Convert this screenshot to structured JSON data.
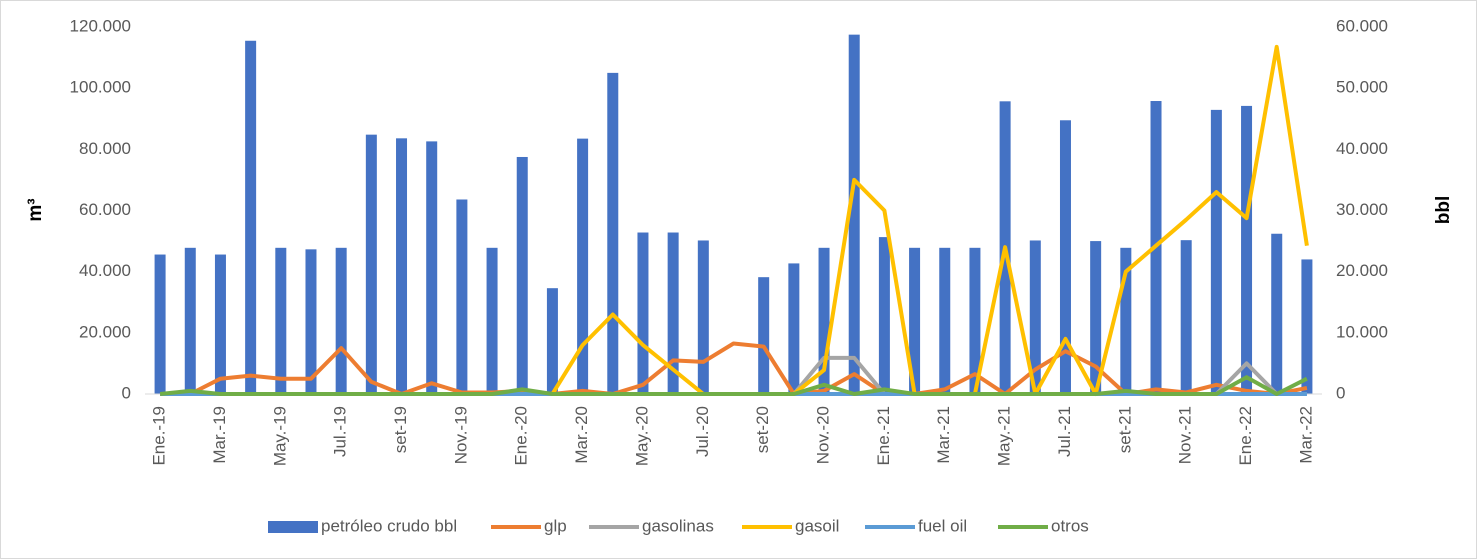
{
  "chart_data": {
    "type": "bar",
    "categories": [
      "Ene.-19",
      null,
      "Mar.-19",
      null,
      "May.-19",
      null,
      "Jul.-19",
      null,
      "set-19",
      null,
      "Nov.-19",
      null,
      "Ene.-20",
      null,
      "Mar.-20",
      null,
      "May.-20",
      null,
      "Jul.-20",
      null,
      "set-20",
      null,
      "Nov.-20",
      null,
      "Ene.-21",
      null,
      "Mar.-21",
      null,
      "May.-21",
      null,
      "Jul.-21",
      null,
      "set-21",
      null,
      "Nov.-21",
      null,
      "Ene.-22",
      null,
      "Mar.-22"
    ],
    "ylabel": "m³",
    "y2label": "bbl",
    "ylim": [
      0,
      120000
    ],
    "yticks": [
      0,
      {
        "value": 20000,
        "label": "20.000"
      },
      {
        "value": 40000,
        "label": "40.000"
      },
      {
        "value": 60000,
        "label": "60.000"
      },
      {
        "value": 80000,
        "label": "80.000"
      },
      {
        "value": 100000,
        "label": "100.000"
      },
      {
        "value": 120000,
        "label": "120.000"
      }
    ],
    "y2lim": [
      0,
      60000
    ],
    "y2ticks": [
      0,
      {
        "value": 10000,
        "label": "10.000"
      },
      {
        "value": 20000,
        "label": "20.000"
      },
      {
        "value": 30000,
        "label": "30.000"
      },
      {
        "value": 40000,
        "label": "40.000"
      },
      {
        "value": 50000,
        "label": "50.000"
      },
      {
        "value": 60000,
        "label": "60.000"
      }
    ],
    "grid": false,
    "legend": "bottom",
    "series": [
      {
        "name": "petróleo crudo bbl",
        "type": "bar",
        "axis": "y2",
        "color": "#4472c4",
        "values": [
          22800,
          23900,
          22800,
          57750,
          23900,
          23650,
          23900,
          42400,
          41800,
          41300,
          31800,
          23900,
          38750,
          17300,
          41750,
          52500,
          26400,
          26400,
          25100,
          0,
          19100,
          21350,
          23900,
          58750,
          25650,
          23900,
          23900,
          23900,
          47850,
          25100,
          44750,
          25000,
          23900,
          47900,
          25150,
          46450,
          47100,
          26200,
          22000
        ]
      },
      {
        "name": "glp",
        "type": "line",
        "color": "#ed7d31",
        "values": [
          0,
          0,
          5000,
          6000,
          5000,
          5000,
          15000,
          4000,
          0,
          3500,
          500,
          500,
          1000,
          0,
          1000,
          0,
          3000,
          11000,
          10500,
          16500,
          15500,
          0,
          1000,
          6500,
          0,
          0,
          1500,
          6500,
          0,
          8000,
          14000,
          9000,
          0,
          1500,
          500,
          3000,
          1000,
          0,
          2000
        ]
      },
      {
        "name": "gasolinas",
        "type": "line",
        "color": "#a5a5a5",
        "values": [
          0,
          0,
          0,
          0,
          0,
          0,
          0,
          0,
          0,
          0,
          0,
          0,
          0,
          0,
          0,
          0,
          0,
          0,
          0,
          0,
          0,
          0,
          11800,
          11800,
          0,
          0,
          0,
          0,
          0,
          0,
          0,
          0,
          0,
          0,
          0,
          0,
          10000,
          0,
          0
        ]
      },
      {
        "name": "gasoil",
        "type": "line",
        "color": "#ffc000",
        "values": [
          0,
          0,
          0,
          0,
          0,
          0,
          0,
          0,
          0,
          0,
          0,
          0,
          0,
          0,
          16000,
          26000,
          16000,
          8000,
          0,
          0,
          0,
          0,
          7800,
          70000,
          60000,
          0,
          0,
          0,
          48000,
          0,
          18000,
          0,
          40000,
          48500,
          57000,
          66000,
          57500,
          113500,
          48500
        ]
      },
      {
        "name": "fuel oil",
        "type": "line",
        "color": "#5b9bd5",
        "values": [
          0,
          0,
          0,
          0,
          0,
          0,
          0,
          0,
          0,
          0,
          0,
          0,
          0,
          0,
          0,
          0,
          0,
          0,
          0,
          0,
          0,
          0,
          0,
          0,
          0,
          0,
          0,
          0,
          0,
          0,
          0,
          0,
          0,
          0,
          0,
          0,
          0,
          0,
          0
        ]
      },
      {
        "name": "otros",
        "type": "line",
        "color": "#70ad47",
        "values": [
          0,
          1000,
          0,
          0,
          0,
          0,
          0,
          0,
          0,
          0,
          0,
          0,
          1500,
          0,
          0,
          0,
          0,
          0,
          0,
          0,
          0,
          0,
          3000,
          0,
          1500,
          0,
          0,
          0,
          0,
          0,
          0,
          0,
          1000,
          0,
          0,
          0,
          5500,
          0,
          5000
        ]
      }
    ]
  }
}
